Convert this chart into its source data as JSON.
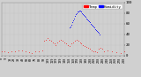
{
  "title": "",
  "legend_labels": [
    "Temp",
    "Humidity"
  ],
  "legend_colors": [
    "#ff0000",
    "#0000ff"
  ],
  "background_color": "#d0d0d0",
  "plot_bg_color": "#d0d0d0",
  "grid_color": "#aaaaaa",
  "ymin": 0,
  "ymax": 100,
  "xmin": 0,
  "xmax": 288,
  "blue_x": [
    160,
    162,
    164,
    166,
    168,
    170,
    172,
    174,
    176,
    178,
    180,
    182,
    184,
    186,
    188,
    190,
    192,
    194,
    196,
    198,
    200,
    202,
    204,
    206,
    208,
    210,
    212,
    214,
    216,
    218,
    220,
    222,
    224,
    226,
    228,
    230
  ],
  "blue_y": [
    52,
    55,
    58,
    62,
    66,
    70,
    74,
    77,
    80,
    82,
    83,
    84,
    84,
    83,
    82,
    80,
    78,
    76,
    74,
    72,
    70,
    68,
    66,
    64,
    62,
    60,
    58,
    56,
    54,
    52,
    50,
    48,
    46,
    44,
    42,
    40
  ],
  "red_x": [
    0,
    8,
    16,
    24,
    32,
    40,
    48,
    56,
    64,
    72,
    80,
    88,
    96,
    100,
    104,
    108,
    112,
    116,
    120,
    124,
    128,
    132,
    136,
    140,
    144,
    148,
    152,
    156,
    160,
    164,
    168,
    172,
    176,
    180,
    184,
    188,
    192,
    196,
    200,
    204,
    208,
    212,
    216,
    220,
    224,
    228,
    232,
    236,
    240,
    250,
    260,
    270,
    280,
    288
  ],
  "red_y": [
    8,
    7,
    6,
    7,
    8,
    9,
    10,
    7,
    6,
    5,
    7,
    8,
    9,
    28,
    30,
    32,
    30,
    28,
    25,
    22,
    20,
    25,
    28,
    30,
    28,
    25,
    22,
    20,
    18,
    22,
    25,
    28,
    30,
    28,
    25,
    22,
    20,
    18,
    16,
    14,
    12,
    10,
    8,
    7,
    6,
    12,
    15,
    12,
    8,
    10,
    7,
    6,
    5,
    8
  ],
  "yticks": [
    0,
    20,
    40,
    60,
    80,
    100
  ],
  "num_xticks": 30,
  "dot_size_blue": 1.5,
  "dot_size_red": 1.0,
  "title_fontsize": 4,
  "tick_fontsize": 3,
  "legend_fontsize": 3
}
